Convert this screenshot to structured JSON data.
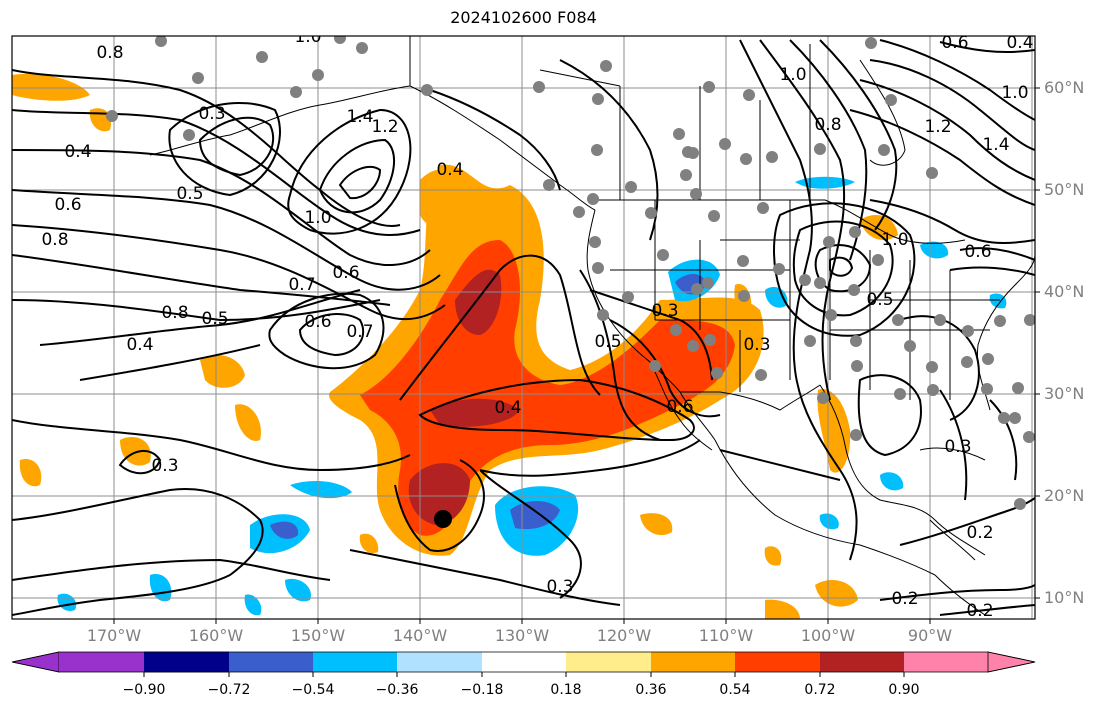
{
  "title": "2024102600 F084",
  "map": {
    "lat_labels": [
      "60°N",
      "50°N",
      "40°N",
      "30°N",
      "20°N",
      "10°N"
    ],
    "lon_labels": [
      "170°W",
      "160°W",
      "150°W",
      "140°W",
      "130°W",
      "120°W",
      "110°W",
      "100°W",
      "90°W"
    ],
    "contour_labels": [
      "0.8",
      "1.0",
      "0.3",
      "0.4",
      "1.4",
      "1.2",
      "0.5",
      "0.6",
      "0.8",
      "1.0",
      "0.7",
      "0.6",
      "0.6",
      "0.7",
      "0.8",
      "0.5",
      "0.4",
      "0.3",
      "0.4",
      "0.3",
      "0.5",
      "0.3",
      "0.6",
      "0.3",
      "1.0",
      "0.8",
      "1.0",
      "0.6",
      "0.5",
      "1.2",
      "1.4",
      "1.0",
      "0.6",
      "0.4",
      "0.3",
      "0.2",
      "0.2",
      "0.2",
      "0.3",
      "0.4"
    ],
    "marker_color": "#000000"
  },
  "colorbar": {
    "tick_labels": [
      "−0.90",
      "−0.72",
      "−0.54",
      "−0.36",
      "−0.18",
      "0.18",
      "0.36",
      "0.54",
      "0.72",
      "0.90"
    ],
    "colors": [
      "#9932CC",
      "#00008B",
      "#3A5FCD",
      "#00BFFF",
      "#B0E2FF",
      "#FFFFFF",
      "#FFEC8B",
      "#FFA500",
      "#FF3E00",
      "#B22222",
      "#FF82AB"
    ]
  },
  "shading": {
    "positive_colors": [
      "#FFA500",
      "#FF3E00",
      "#B22222"
    ],
    "negative_colors": [
      "#00BFFF",
      "#3A5FCD"
    ]
  }
}
